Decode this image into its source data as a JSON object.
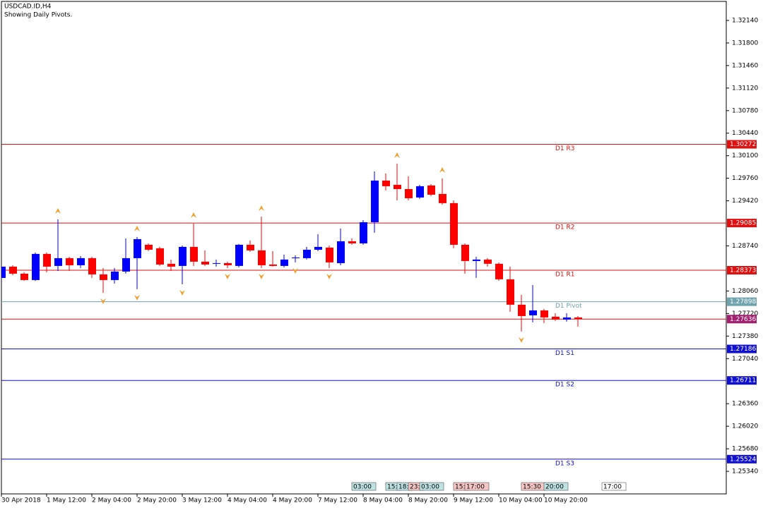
{
  "chart_data": {
    "type": "candlestick",
    "title": "USDCAD.ID,H4",
    "subtitle": "Showing Daily Pivots.",
    "up_color": "#0000ff",
    "down_color": "#ff0000",
    "fractal_color": "#f0a030",
    "categories": [
      "30 Apr 2018",
      null,
      null,
      null,
      "1 May 12:00",
      null,
      null,
      null,
      "2 May 04:00",
      null,
      null,
      null,
      "2 May 20:00",
      null,
      null,
      null,
      "3 May 12:00",
      null,
      null,
      null,
      "4 May 04:00",
      null,
      null,
      null,
      "4 May 20:00",
      null,
      null,
      null,
      "7 May 12:00",
      null,
      null,
      null,
      "8 May 04:00",
      null,
      null,
      null,
      "8 May 20:00",
      null,
      null,
      null,
      "9 May 12:00",
      null,
      null,
      null,
      "10 May 04:00",
      null,
      null,
      null,
      "10 May 20:00",
      null,
      null,
      null
    ],
    "open": [
      1.28257,
      1.28427,
      1.28321,
      1.28225,
      1.28619,
      1.28438,
      1.28555,
      1.28448,
      1.28555,
      1.2831,
      1.28225,
      1.28353,
      1.28555,
      1.28757,
      1.28704,
      1.2847,
      1.28438,
      1.28725,
      1.28502,
      1.2847,
      1.2848,
      1.28438,
      1.28757,
      1.28672,
      1.28459,
      1.28438,
      1.28555,
      1.28555,
      1.28682,
      1.28714,
      1.2848,
      1.2881,
      1.28778,
      1.29097,
      1.29725,
      1.29661,
      1.29597,
      1.2947,
      1.29651,
      1.29523,
      1.29385,
      1.28757,
      1.28512,
      1.28534,
      1.2847,
      1.28236,
      1.27853,
      1.27693,
      1.27767,
      1.27672,
      1.27629,
      1.27661
    ],
    "high": [
      1.28448,
      1.28448,
      1.28342,
      1.2864,
      1.2864,
      1.2914,
      1.28576,
      1.28587,
      1.28576,
      1.28406,
      1.28406,
      1.28853,
      1.28874,
      1.28778,
      1.28725,
      1.28534,
      1.28746,
      1.29076,
      1.28672,
      1.28534,
      1.28502,
      1.28768,
      1.28821,
      1.29182,
      1.28661,
      1.28608,
      1.28597,
      1.28725,
      1.28917,
      1.28746,
      1.29002,
      1.28853,
      1.29129,
      1.29863,
      1.29832,
      1.29981,
      1.29789,
      1.29661,
      1.29672,
      1.29757,
      1.29427,
      1.28778,
      1.28576,
      1.28555,
      1.28491,
      1.28427,
      1.28002,
      1.2815,
      1.27789,
      1.27725,
      1.27725,
      1.27682
    ],
    "low": [
      1.28236,
      1.28299,
      1.28214,
      1.28214,
      1.28342,
      1.28363,
      1.28363,
      1.28406,
      1.28257,
      1.28033,
      1.28172,
      1.28321,
      1.28087,
      1.28661,
      1.28438,
      1.28363,
      1.28161,
      1.28438,
      1.28438,
      1.28427,
      1.28406,
      1.28416,
      1.28651,
      1.28406,
      1.28427,
      1.28416,
      1.28491,
      1.28534,
      1.28661,
      1.28406,
      1.28448,
      1.28757,
      1.28757,
      1.28938,
      1.29576,
      1.29427,
      1.29427,
      1.29449,
      1.29491,
      1.29363,
      1.28704,
      1.28321,
      1.28257,
      1.28427,
      1.28214,
      1.27746,
      1.27448,
      1.27587,
      1.27576,
      1.27608,
      1.27597,
      1.27523
    ],
    "close": [
      1.28427,
      1.28321,
      1.28225,
      1.28619,
      1.28427,
      1.28555,
      1.28448,
      1.28555,
      1.2831,
      1.28225,
      1.28353,
      1.28555,
      1.28842,
      1.28682,
      1.28459,
      1.28427,
      1.28725,
      1.28502,
      1.28459,
      1.2848,
      1.28448,
      1.28757,
      1.28672,
      1.28448,
      1.28438,
      1.28534,
      1.28565,
      1.28682,
      1.28725,
      1.28491,
      1.2881,
      1.28778,
      1.29097,
      1.29725,
      1.2964,
      1.29597,
      1.29459,
      1.2964,
      1.29512,
      1.29385,
      1.28757,
      1.28512,
      1.28534,
      1.2847,
      1.28236,
      1.27853,
      1.27682,
      1.27767,
      1.27661,
      1.27629,
      1.27661,
      1.27636
    ],
    "fractals_up": [
      null,
      null,
      null,
      null,
      null,
      1.2914,
      null,
      null,
      null,
      null,
      null,
      null,
      1.28874,
      null,
      null,
      null,
      null,
      1.29076,
      null,
      null,
      null,
      null,
      null,
      1.29182,
      null,
      null,
      null,
      null,
      null,
      null,
      null,
      null,
      null,
      null,
      null,
      1.29981,
      null,
      null,
      null,
      1.29757,
      null,
      null,
      null,
      null,
      null,
      null,
      null,
      null,
      null,
      null,
      null,
      null
    ],
    "fractals_down": [
      null,
      null,
      null,
      null,
      null,
      null,
      null,
      null,
      null,
      1.28033,
      null,
      null,
      1.28087,
      null,
      null,
      null,
      1.28161,
      null,
      null,
      null,
      1.28406,
      null,
      null,
      1.28406,
      null,
      null,
      1.28491,
      null,
      null,
      1.28406,
      null,
      null,
      null,
      null,
      null,
      null,
      null,
      null,
      null,
      null,
      null,
      null,
      null,
      null,
      null,
      null,
      1.27448,
      null,
      null,
      null,
      null,
      null
    ],
    "ylim": [
      1.25,
      1.32427
    ],
    "yticks": [
      {
        "value": 1.3214,
        "label": "1.32140"
      },
      {
        "value": 1.318,
        "label": "1.31800"
      },
      {
        "value": 1.3146,
        "label": "1.31460"
      },
      {
        "value": 1.3112,
        "label": "1.31120"
      },
      {
        "value": 1.3078,
        "label": "1.30780"
      },
      {
        "value": 1.3044,
        "label": "1.30440"
      },
      {
        "value": 1.301,
        "label": "1.30100"
      },
      {
        "value": 1.2976,
        "label": "1.29760"
      },
      {
        "value": 1.2942,
        "label": "1.29420"
      },
      {
        "value": 1.2874,
        "label": "1.28740"
      },
      {
        "value": 1.2806,
        "label": "1.28060"
      },
      {
        "value": 1.2772,
        "label": "1.27720"
      },
      {
        "value": 1.2738,
        "label": "1.27380"
      },
      {
        "value": 1.2704,
        "label": "1.27040"
      },
      {
        "value": 1.2636,
        "label": "1.26360"
      },
      {
        "value": 1.2602,
        "label": "1.26020"
      },
      {
        "value": 1.2568,
        "label": "1.25680"
      },
      {
        "value": 1.2534,
        "label": "1.25340"
      }
    ],
    "levels": [
      {
        "name": "D1 R3",
        "value": 1.30272,
        "color": "#e01010"
      },
      {
        "name": "D1 R2",
        "value": 1.29085,
        "color": "#e01010"
      },
      {
        "name": "D1 R1",
        "value": 1.28373,
        "color": "#e01010"
      },
      {
        "name": "D1 Pivot",
        "value": 1.27898,
        "color": "#6fa3ad"
      },
      {
        "name": "D1 S1",
        "value": 1.27186,
        "color": "#1010d0"
      },
      {
        "name": "D1 S2",
        "value": 1.26711,
        "color": "#1010d0"
      },
      {
        "name": "D1 S3",
        "value": 1.25524,
        "color": "#1010d0"
      }
    ],
    "bid": {
      "value": 1.27636,
      "color": "#e01010",
      "label_color": "#a2206f"
    },
    "time_markers": [
      {
        "label": "03:00",
        "color": "#bfe3e3"
      },
      {
        "label": "15:",
        "color": "#bfe3e3"
      },
      {
        "label": "18:",
        "color": "#bfe3e3"
      },
      {
        "label": "23:",
        "color": "#f6c6c6"
      },
      {
        "label": "03:00",
        "color": "#bfe3e3"
      },
      {
        "label": "15:",
        "color": "#f6c6c6"
      },
      {
        "label": "17:00",
        "color": "#f6c6c6"
      },
      {
        "label": "15:30",
        "color": "#f6c6c6"
      },
      {
        "label": "20:00",
        "color": "#bfe3e3"
      },
      {
        "label": "17:00",
        "color": "#ffffff"
      }
    ]
  }
}
